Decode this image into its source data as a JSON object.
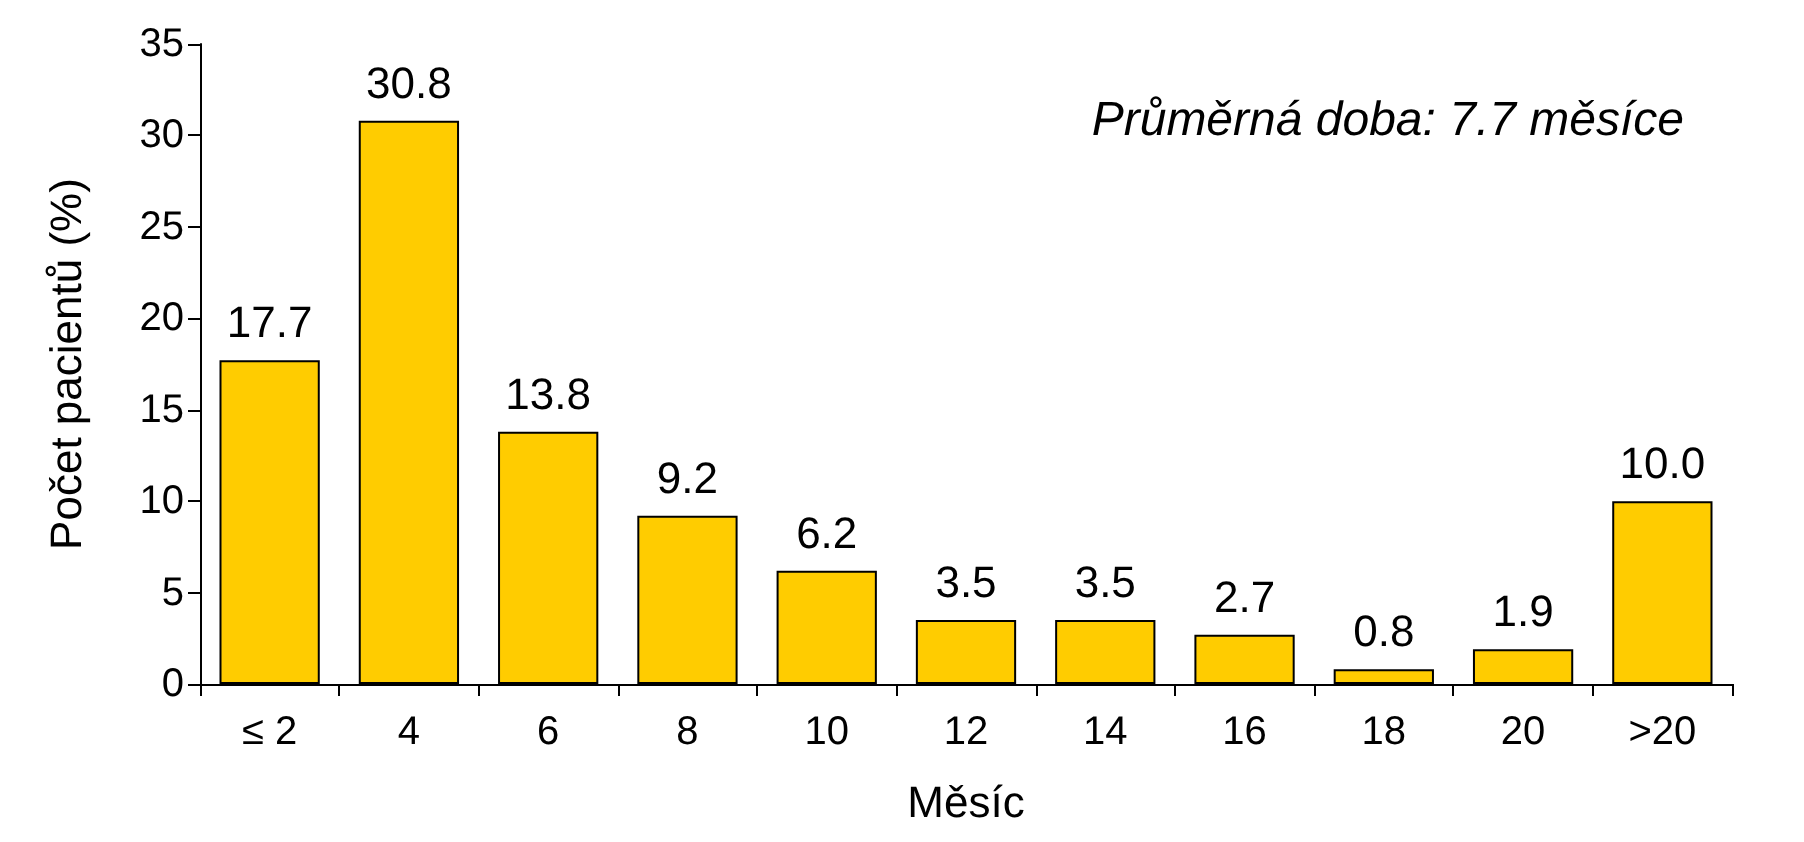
{
  "chart_data": {
    "type": "bar",
    "xlabel": "Měsíc",
    "ylabel": "Počet pacientů (%)",
    "categories": [
      "≤ 2",
      "4",
      "6",
      "8",
      "10",
      "12",
      "14",
      "16",
      "18",
      "20",
      ">20"
    ],
    "values": [
      17.7,
      30.8,
      13.8,
      9.2,
      6.2,
      3.5,
      3.5,
      2.7,
      0.8,
      1.9,
      10.0
    ],
    "value_labels": [
      "17.7",
      "30.8",
      "13.8",
      "9.2",
      "6.2",
      "3.5",
      "3.5",
      "2.7",
      "0.8",
      "1.9",
      "10.0"
    ],
    "color": "#ffcc00",
    "ylim": [
      0,
      35
    ],
    "yticks": [
      0,
      5,
      10,
      15,
      20,
      25,
      30,
      35
    ],
    "grid": false,
    "annotations": [
      "Průměrná doba: 7.7 měsíce"
    ]
  }
}
